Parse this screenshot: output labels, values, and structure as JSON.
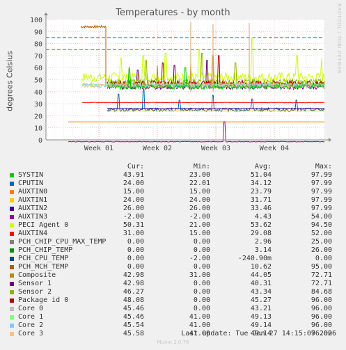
{
  "title": "Temperatures - by month",
  "ylabel": "degrees Celsius",
  "side_label": "RRDTOOL / TOBI OETIKER",
  "chart_data": {
    "type": "line",
    "title": "Temperatures - by month",
    "ylabel": "degrees Celsius",
    "xlabel": "",
    "ylim": [
      0,
      100
    ],
    "yticks": [
      0,
      10,
      20,
      30,
      40,
      50,
      60,
      70,
      80,
      90,
      100
    ],
    "x_tick_labels": [
      "Week 01",
      "Week 02",
      "Week 03",
      "Week 04"
    ],
    "grid": true,
    "reference_lines": [
      {
        "y": 85,
        "color": "#2060a0"
      },
      {
        "y": 75,
        "color": "#2e9e2e"
      }
    ],
    "series": [
      {
        "name": "SYSTIN",
        "color": "#00cc00",
        "cur": "43.91",
        "min": "23.00",
        "avg": "51.04",
        "max": "97.99"
      },
      {
        "name": "CPUTIN",
        "color": "#0066b3",
        "cur": "24.00",
        "min": "22.01",
        "avg": "34.12",
        "max": "97.99"
      },
      {
        "name": "AUXTIN0",
        "color": "#ff8000",
        "cur": "15.00",
        "min": "15.00",
        "avg": "23.79",
        "max": "97.99"
      },
      {
        "name": "AUXTIN1",
        "color": "#ffcc00",
        "cur": "24.00",
        "min": "24.00",
        "avg": "31.71",
        "max": "97.99"
      },
      {
        "name": "AUXTIN2",
        "color": "#330099",
        "cur": "26.00",
        "min": "26.00",
        "avg": "33.46",
        "max": "97.99"
      },
      {
        "name": "AUXTIN3",
        "color": "#990099",
        "cur": "-2.00",
        "min": "-2.00",
        "avg": "4.43",
        "max": "54.00"
      },
      {
        "name": "PECI Agent 0",
        "color": "#ccff00",
        "cur": "50.31",
        "min": "21.00",
        "avg": "53.62",
        "max": "94.50"
      },
      {
        "name": "AUXTIN4",
        "color": "#ff0000",
        "cur": "31.00",
        "min": "15.00",
        "avg": "29.08",
        "max": "52.00"
      },
      {
        "name": "PCH_CHIP_CPU_MAX_TEMP",
        "color": "#808080",
        "cur": "0.00",
        "min": "0.00",
        "avg": "2.96",
        "max": "25.00"
      },
      {
        "name": "PCH_CHIP_TEMP",
        "color": "#008f00",
        "cur": "0.00",
        "min": "0.00",
        "avg": "3.14",
        "max": "26.00"
      },
      {
        "name": "PCH_CPU_TEMP",
        "color": "#00487d",
        "cur": "0.00",
        "min": "-2.00",
        "avg": "-240.90m",
        "max": "0.00"
      },
      {
        "name": "PCH_MCH_TEMP",
        "color": "#b35a00",
        "cur": "0.00",
        "min": "0.00",
        "avg": "10.62",
        "max": "95.00"
      },
      {
        "name": "Composite",
        "color": "#b38f00",
        "cur": "42.98",
        "min": "31.00",
        "avg": "44.05",
        "max": "72.71"
      },
      {
        "name": "Sensor 1",
        "color": "#6b006b",
        "cur": "42.98",
        "min": "0.00",
        "avg": "40.31",
        "max": "72.71"
      },
      {
        "name": "Sensor 2",
        "color": "#8fb300",
        "cur": "46.27",
        "min": "0.00",
        "avg": "43.34",
        "max": "84.68"
      },
      {
        "name": "Package id 0",
        "color": "#b30000",
        "cur": "48.08",
        "min": "0.00",
        "avg": "45.27",
        "max": "96.00"
      },
      {
        "name": "Core 0",
        "color": "#bebebe",
        "cur": "45.46",
        "min": "0.00",
        "avg": "43.21",
        "max": "96.00"
      },
      {
        "name": "Core 1",
        "color": "#80ff80",
        "cur": "45.46",
        "min": "41.00",
        "avg": "49.13",
        "max": "96.00"
      },
      {
        "name": "Core 2",
        "color": "#80c9ff",
        "cur": "45.54",
        "min": "41.00",
        "avg": "49.14",
        "max": "96.00"
      },
      {
        "name": "Core 3",
        "color": "#ffc080",
        "cur": "45.58",
        "min": "41.00",
        "avg": "49.14",
        "max": "96.00"
      }
    ]
  },
  "legend_headers": {
    "cur": "Cur:",
    "min": "Min:",
    "avg": "Avg:",
    "max": "Max:"
  },
  "last_update": "Last update: Tue Jan 27 14:15:07 2026",
  "footer": "Munin 2.0.76"
}
